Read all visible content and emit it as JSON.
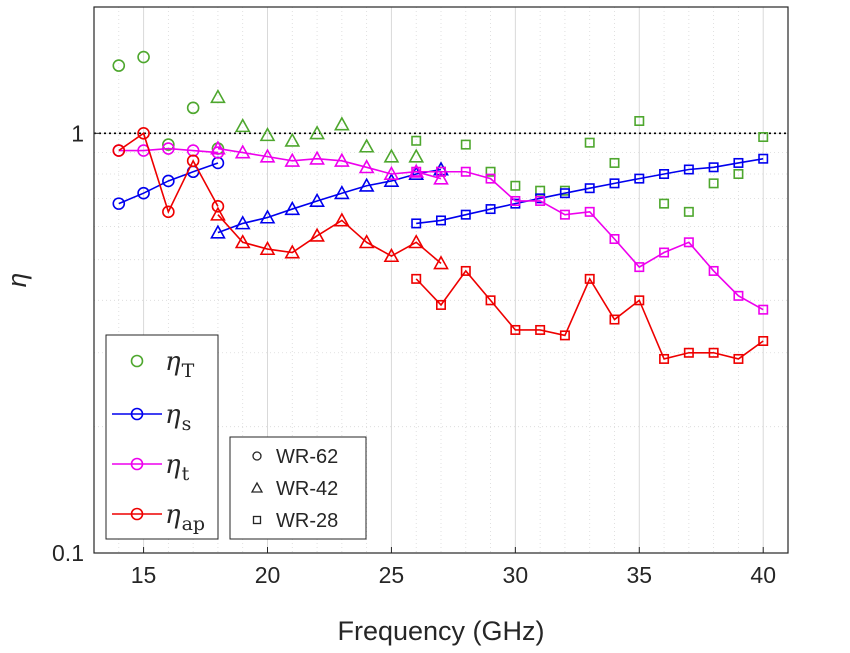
{
  "chart_data": {
    "type": "line",
    "title": "",
    "xlabel": "Frequency (GHz)",
    "ylabel": "η",
    "xlim": [
      13,
      41
    ],
    "ylim": [
      0.1,
      2
    ],
    "yscale": "log",
    "x_ticks": [
      15,
      20,
      25,
      30,
      35,
      40
    ],
    "x_tick_labels": [
      "15",
      "20",
      "25",
      "30",
      "35",
      "40"
    ],
    "y_ticks": [
      0.1,
      1
    ],
    "y_tick_labels": [
      "0.1",
      "1"
    ],
    "reference_line": 1,
    "grid": true,
    "colors": {
      "eta_T": "#4ea72e",
      "eta_s": "#0000ee",
      "eta_t": "#ee00ee",
      "eta_ap": "#ee0000",
      "reference": "#000000"
    },
    "legend_series": [
      {
        "id": "eta_T",
        "symbol": "η",
        "sub": "T",
        "line": false
      },
      {
        "id": "eta_s",
        "symbol": "η",
        "sub": "s",
        "line": true
      },
      {
        "id": "eta_t",
        "symbol": "η",
        "sub": "t",
        "line": true
      },
      {
        "id": "eta_ap",
        "symbol": "η",
        "sub": "ap",
        "line": true
      }
    ],
    "legend_waveguides": [
      {
        "label": "WR-62",
        "marker": "circle"
      },
      {
        "label": "WR-42",
        "marker": "triangle"
      },
      {
        "label": "WR-28",
        "marker": "square"
      }
    ],
    "series": [
      {
        "name": "eta_T",
        "band": "WR-62",
        "marker": "circle",
        "line": false,
        "x": [
          14,
          15,
          16,
          17,
          18
        ],
        "y": [
          1.45,
          1.52,
          0.94,
          1.15,
          0.92
        ]
      },
      {
        "name": "eta_T",
        "band": "WR-42",
        "marker": "triangle",
        "line": false,
        "x": [
          18,
          19,
          20,
          21,
          22,
          23,
          24,
          25,
          26,
          27
        ],
        "y": [
          1.22,
          1.04,
          0.99,
          0.96,
          1.0,
          1.05,
          0.93,
          0.88,
          0.88,
          0.82
        ]
      },
      {
        "name": "eta_T",
        "band": "WR-28",
        "marker": "square",
        "line": false,
        "x": [
          26,
          27,
          28,
          29,
          30,
          31,
          32,
          33,
          34,
          35,
          36,
          37,
          38,
          39,
          40
        ],
        "y": [
          0.96,
          0.81,
          0.94,
          0.81,
          0.75,
          0.73,
          0.73,
          0.95,
          0.85,
          1.07,
          0.68,
          0.65,
          0.76,
          0.8,
          0.98
        ]
      },
      {
        "name": "eta_s",
        "band": "WR-62",
        "marker": "circle",
        "line": true,
        "x": [
          14,
          15,
          16,
          17,
          18
        ],
        "y": [
          0.68,
          0.72,
          0.77,
          0.81,
          0.85
        ]
      },
      {
        "name": "eta_s",
        "band": "WR-42",
        "marker": "triangle",
        "line": true,
        "x": [
          18,
          19,
          20,
          21,
          22,
          23,
          24,
          25,
          26,
          27
        ],
        "y": [
          0.58,
          0.61,
          0.63,
          0.66,
          0.69,
          0.72,
          0.75,
          0.77,
          0.8,
          0.82
        ]
      },
      {
        "name": "eta_s",
        "band": "WR-28",
        "marker": "square",
        "line": true,
        "x": [
          26,
          27,
          28,
          29,
          30,
          31,
          32,
          33,
          34,
          35,
          36,
          37,
          38,
          39,
          40
        ],
        "y": [
          0.61,
          0.62,
          0.64,
          0.66,
          0.68,
          0.7,
          0.72,
          0.74,
          0.76,
          0.78,
          0.8,
          0.82,
          0.83,
          0.85,
          0.87
        ]
      },
      {
        "name": "eta_t",
        "band": "WR-62",
        "marker": "circle",
        "line": true,
        "x": [
          14,
          15,
          16,
          17,
          18
        ],
        "y": [
          0.91,
          0.91,
          0.92,
          0.91,
          0.9
        ]
      },
      {
        "name": "eta_t",
        "band": "WR-42",
        "marker": "triangle",
        "line": true,
        "x": [
          18,
          19,
          20,
          21,
          22,
          23,
          24,
          25,
          26,
          27
        ],
        "y": [
          0.92,
          0.9,
          0.88,
          0.86,
          0.87,
          0.86,
          0.83,
          0.8,
          0.81,
          0.78
        ]
      },
      {
        "name": "eta_t",
        "band": "WR-28",
        "marker": "square",
        "line": true,
        "x": [
          26,
          27,
          28,
          29,
          30,
          31,
          32,
          33,
          34,
          35,
          36,
          37,
          38,
          39,
          40
        ],
        "y": [
          0.81,
          0.81,
          0.81,
          0.78,
          0.69,
          0.69,
          0.64,
          0.65,
          0.56,
          0.48,
          0.52,
          0.55,
          0.47,
          0.41,
          0.38
        ]
      },
      {
        "name": "eta_ap",
        "band": "WR-62",
        "marker": "circle",
        "line": true,
        "x": [
          14,
          15,
          16,
          17,
          18
        ],
        "y": [
          0.91,
          1.0,
          0.65,
          0.86,
          0.67
        ]
      },
      {
        "name": "eta_ap",
        "band": "WR-42",
        "marker": "triangle",
        "line": true,
        "x": [
          18,
          19,
          20,
          21,
          22,
          23,
          24,
          25,
          26,
          27
        ],
        "y": [
          0.64,
          0.55,
          0.53,
          0.52,
          0.57,
          0.62,
          0.55,
          0.51,
          0.55,
          0.49
        ]
      },
      {
        "name": "eta_ap",
        "band": "WR-28",
        "marker": "square",
        "line": true,
        "x": [
          26,
          27,
          28,
          29,
          30,
          31,
          32,
          33,
          34,
          35,
          36,
          37,
          38,
          39,
          40
        ],
        "y": [
          0.45,
          0.39,
          0.47,
          0.4,
          0.34,
          0.34,
          0.33,
          0.45,
          0.36,
          0.4,
          0.29,
          0.3,
          0.3,
          0.29,
          0.32
        ]
      }
    ]
  }
}
